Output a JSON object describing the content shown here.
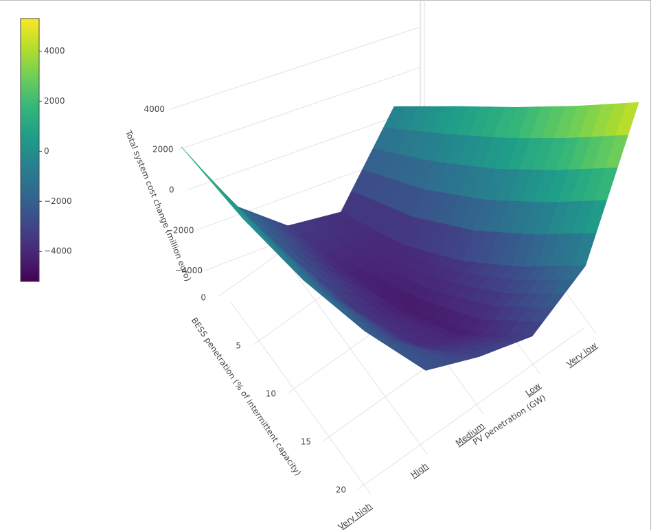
{
  "chart_data": {
    "type": "surface",
    "z_title": "Total system cost change (million euro)",
    "x_title": "BESS penetration (% of intermittent capacity)",
    "y_title": "PV penetration (GW)",
    "x": [
      0,
      5,
      10,
      15,
      20
    ],
    "xlim": [
      0,
      20
    ],
    "xticks": [
      0,
      5,
      10,
      15,
      20
    ],
    "categories": [
      "Very high",
      "High",
      "Medium",
      "Low",
      "Very low"
    ],
    "z": [
      [
        2400,
        500,
        -1000,
        -2000,
        -2500
      ],
      [
        -1300,
        -2500,
        -3500,
        -3800,
        -3000
      ],
      [
        -3300,
        -4200,
        -4500,
        -4300,
        -3200
      ],
      [
        -3800,
        -4000,
        -3500,
        -2500,
        -1200
      ],
      [
        -250,
        1000,
        2200,
        3500,
        4900
      ]
    ],
    "zlim": [
      -5000,
      5500
    ],
    "zticks": [
      {
        "value": -4000,
        "label": "−4000"
      },
      {
        "value": -2000,
        "label": "−2000"
      },
      0,
      2000,
      4000
    ],
    "colorbar": {
      "lim": [
        -5200,
        5300
      ],
      "ticks": [
        {
          "value": -4000,
          "label": "−4000"
        },
        {
          "value": -2000,
          "label": "−2000"
        },
        0,
        2000,
        4000
      ]
    },
    "colorscale": [
      "#440154",
      "#482878",
      "#3e4989",
      "#31688e",
      "#26828e",
      "#1f9e89",
      "#35b779",
      "#6ece58",
      "#b5de2b",
      "#fde725"
    ]
  }
}
